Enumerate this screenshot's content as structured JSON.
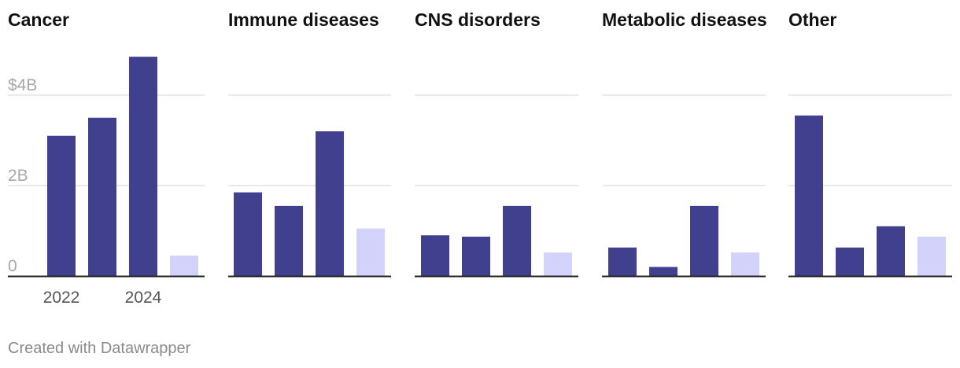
{
  "colors": {
    "bar": "#40408f",
    "bar_light": "#d2d2fb",
    "grid": "#e3e3e3",
    "baseline": "#222222"
  },
  "footer": {
    "credit": "Created with Datawrapper"
  },
  "chart_data": [
    {
      "type": "bar",
      "title": "Cancer",
      "categories": [
        "2022",
        "",
        "2024",
        ""
      ],
      "x_tick_labels": [
        "2022",
        "2024"
      ],
      "y_tick_labels": [
        "0",
        "2B",
        "$4B"
      ],
      "y_ticks": [
        0,
        2,
        4
      ],
      "ylim": [
        0,
        5
      ],
      "values": [
        3.1,
        3.5,
        4.85,
        0.45
      ],
      "highlight": [
        true,
        true,
        true,
        false
      ],
      "grid": true
    },
    {
      "type": "bar",
      "title": "Immune diseases",
      "categories": [
        "2022",
        "",
        "2024",
        ""
      ],
      "y_ticks": [
        0,
        2,
        4
      ],
      "ylim": [
        0,
        5
      ],
      "values": [
        1.85,
        1.55,
        3.2,
        1.05
      ],
      "highlight": [
        true,
        true,
        true,
        false
      ],
      "grid": true
    },
    {
      "type": "bar",
      "title": "CNS disorders",
      "categories": [
        "2022",
        "",
        "2024",
        ""
      ],
      "y_ticks": [
        0,
        2,
        4
      ],
      "ylim": [
        0,
        5
      ],
      "values": [
        0.9,
        0.87,
        1.55,
        0.52
      ],
      "highlight": [
        true,
        true,
        true,
        false
      ],
      "grid": true
    },
    {
      "type": "bar",
      "title": "Metabolic diseases",
      "categories": [
        "2022",
        "",
        "2024",
        ""
      ],
      "y_ticks": [
        0,
        2,
        4
      ],
      "ylim": [
        0,
        5
      ],
      "values": [
        0.63,
        0.2,
        1.55,
        0.52
      ],
      "highlight": [
        true,
        true,
        true,
        false
      ],
      "grid": true
    },
    {
      "type": "bar",
      "title": "Other",
      "categories": [
        "2022",
        "",
        "2024",
        ""
      ],
      "y_ticks": [
        0,
        2,
        4
      ],
      "ylim": [
        0,
        5
      ],
      "values": [
        3.55,
        0.63,
        1.1,
        0.87
      ],
      "highlight": [
        true,
        true,
        true,
        false
      ],
      "grid": true
    }
  ]
}
